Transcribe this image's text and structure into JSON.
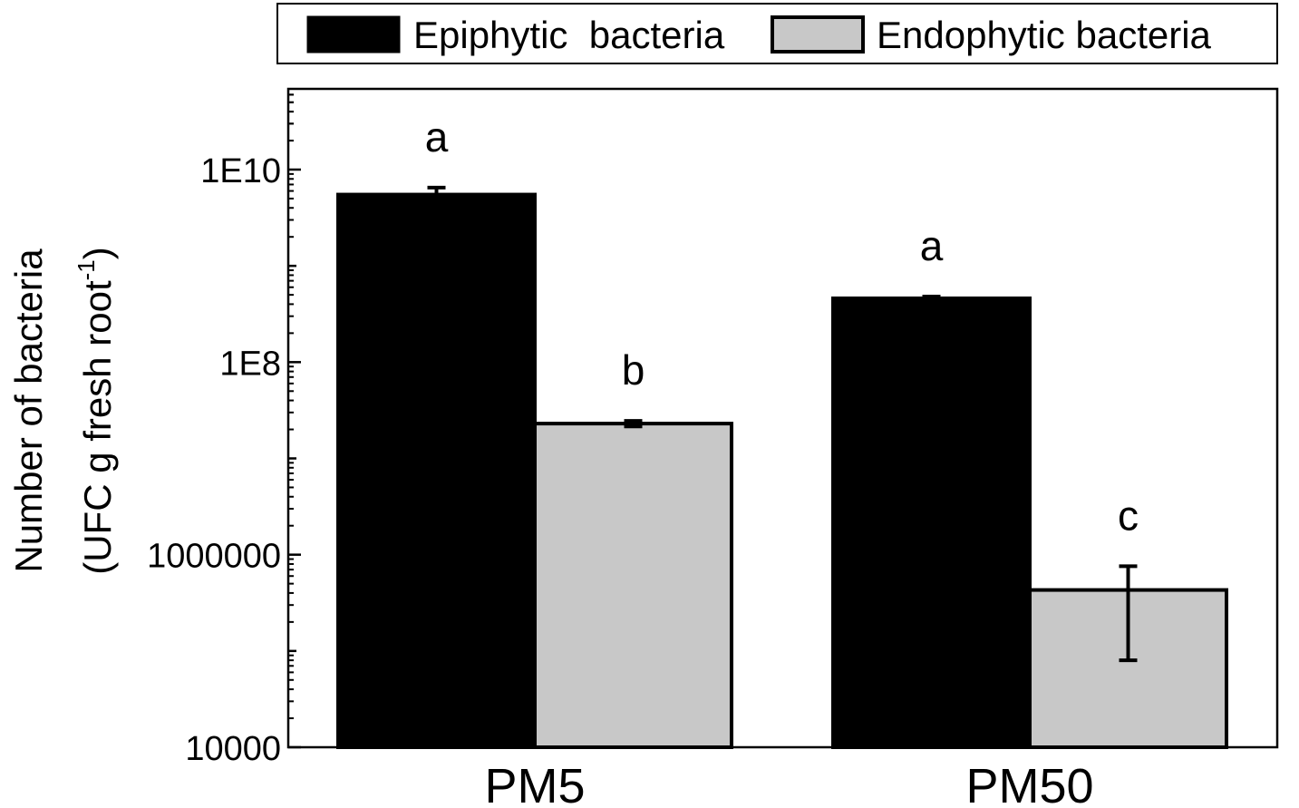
{
  "chart_data": {
    "type": "bar",
    "title": "",
    "categories": [
      "PM5",
      "PM50"
    ],
    "series": [
      {
        "name": "Epiphytic  bacteria",
        "color": "#000000",
        "values": [
          5500000000,
          460000000
        ],
        "error_upper": [
          6500000000,
          480000000
        ],
        "error_lower": [
          4700000000,
          440000000
        ],
        "labels": [
          "a",
          "a"
        ]
      },
      {
        "name": "Endophytic bacteria",
        "color": "#c8c8c8",
        "values": [
          23000000,
          430000
        ],
        "error_upper": [
          24500000,
          760000
        ],
        "error_lower": [
          21500000,
          80000
        ],
        "labels": [
          "b",
          "c"
        ]
      }
    ],
    "ylabel_line1": "Number of bacteria",
    "ylabel_line2_prefix": "(UFC g fresh root",
    "ylabel_line2_sup": "-1",
    "ylabel_line2_suffix": ")",
    "ylim": [
      10000,
      70000000000
    ],
    "yscale": "log",
    "yticks": [
      {
        "value": 10000,
        "label": "10000"
      },
      {
        "value": 1000000,
        "label": "1000000"
      },
      {
        "value": 100000000,
        "label": "1E8"
      },
      {
        "value": 10000000000,
        "label": "1E10"
      }
    ],
    "legend_position": "top"
  }
}
